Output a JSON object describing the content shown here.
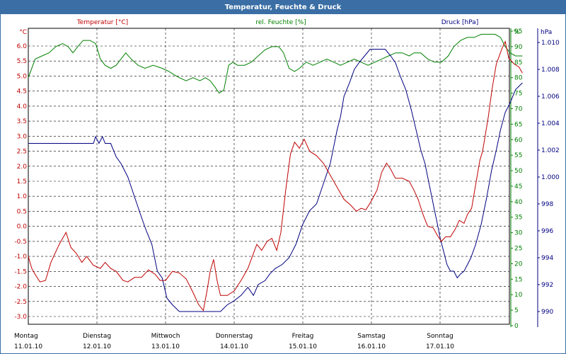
{
  "window": {
    "title": "Temperatur, Feuchte & Druck"
  },
  "colors": {
    "temperature": "#c00000",
    "humidity": "#008000",
    "pressure": "#000080",
    "titlebar": "#3a6ea5"
  },
  "chart_data": {
    "type": "line",
    "title": "Temperatur, Feuchte & Druck",
    "series_labels": {
      "temperature": "Temperatur [°C]",
      "humidity": "rel. Feuchte [%]",
      "pressure": "Druck [hPa]"
    },
    "axes": {
      "left": {
        "unit": "°C",
        "min": -3.0,
        "max": 6.0,
        "ticks": [
          "6.0",
          "5.5",
          "5.0",
          "4.5",
          "4.0",
          "3.5",
          "3.0",
          "2.5",
          "2.0",
          "1.5",
          "1.0",
          "0.5",
          "0.0",
          "-0.5",
          "-1.0",
          "-1.5",
          "-2.0",
          "-2.5",
          "-3.0"
        ]
      },
      "humidity": {
        "unit": "%",
        "min": 0,
        "max": 95,
        "ticks": [
          "95",
          "90",
          "85",
          "80",
          "75",
          "70",
          "65",
          "60",
          "55",
          "50",
          "45",
          "40",
          "35",
          "30",
          "25",
          "20",
          "15",
          "10",
          "5",
          "0"
        ]
      },
      "right": {
        "unit": "hPa",
        "min": 990,
        "max": 1010,
        "ticks": [
          "1.010",
          "1.008",
          "1.006",
          "1.004",
          "1.002",
          "1.000",
          "998",
          "996",
          "994",
          "992",
          "990"
        ]
      }
    },
    "x_days": [
      {
        "day": "Montag",
        "date": "11.01.10"
      },
      {
        "day": "Dienstag",
        "date": "12.01.10"
      },
      {
        "day": "Mittwoch",
        "date": "13.01.10"
      },
      {
        "day": "Donnerstag",
        "date": "14.01.10"
      },
      {
        "day": "Freitag",
        "date": "15.01.10"
      },
      {
        "day": "Samstag",
        "date": "16.01.10"
      },
      {
        "day": "Sonntag",
        "date": "17.01.10"
      }
    ],
    "x_range_days": [
      0,
      7
    ],
    "grid": true,
    "series": [
      {
        "name": "Temperatur [°C]",
        "points": [
          [
            0,
            -1.0
          ],
          [
            0.05,
            -1.4
          ],
          [
            0.1,
            -1.6
          ],
          [
            0.17,
            -1.85
          ],
          [
            0.25,
            -1.8
          ],
          [
            0.33,
            -1.2
          ],
          [
            0.45,
            -0.6
          ],
          [
            0.55,
            -0.2
          ],
          [
            0.62,
            -0.7
          ],
          [
            0.7,
            -0.9
          ],
          [
            0.78,
            -1.2
          ],
          [
            0.85,
            -1.0
          ],
          [
            0.95,
            -1.3
          ],
          [
            1.05,
            -1.4
          ],
          [
            1.12,
            -1.2
          ],
          [
            1.2,
            -1.4
          ],
          [
            1.28,
            -1.5
          ],
          [
            1.38,
            -1.8
          ],
          [
            1.45,
            -1.85
          ],
          [
            1.55,
            -1.7
          ],
          [
            1.65,
            -1.7
          ],
          [
            1.75,
            -1.45
          ],
          [
            1.85,
            -1.6
          ],
          [
            1.92,
            -1.8
          ],
          [
            2.0,
            -1.8
          ],
          [
            2.1,
            -1.5
          ],
          [
            2.2,
            -1.55
          ],
          [
            2.3,
            -1.75
          ],
          [
            2.4,
            -2.2
          ],
          [
            2.48,
            -2.6
          ],
          [
            2.55,
            -2.8
          ],
          [
            2.6,
            -2.2
          ],
          [
            2.65,
            -1.5
          ],
          [
            2.7,
            -1.1
          ],
          [
            2.75,
            -1.8
          ],
          [
            2.8,
            -2.3
          ],
          [
            2.9,
            -2.3
          ],
          [
            3.0,
            -2.15
          ],
          [
            3.1,
            -1.8
          ],
          [
            3.2,
            -1.4
          ],
          [
            3.28,
            -0.9
          ],
          [
            3.33,
            -0.6
          ],
          [
            3.4,
            -0.8
          ],
          [
            3.48,
            -0.5
          ],
          [
            3.55,
            -0.4
          ],
          [
            3.62,
            -0.8
          ],
          [
            3.68,
            -0.2
          ],
          [
            3.75,
            1.2
          ],
          [
            3.82,
            2.4
          ],
          [
            3.88,
            2.8
          ],
          [
            3.95,
            2.6
          ],
          [
            4.02,
            2.9
          ],
          [
            4.1,
            2.5
          ],
          [
            4.2,
            2.35
          ],
          [
            4.3,
            2.1
          ],
          [
            4.4,
            1.7
          ],
          [
            4.5,
            1.3
          ],
          [
            4.6,
            0.9
          ],
          [
            4.7,
            0.7
          ],
          [
            4.78,
            0.5
          ],
          [
            4.85,
            0.6
          ],
          [
            4.92,
            0.55
          ],
          [
            5.0,
            0.85
          ],
          [
            5.08,
            1.2
          ],
          [
            5.15,
            1.8
          ],
          [
            5.22,
            2.1
          ],
          [
            5.28,
            1.9
          ],
          [
            5.35,
            1.6
          ],
          [
            5.45,
            1.6
          ],
          [
            5.55,
            1.5
          ],
          [
            5.62,
            1.2
          ],
          [
            5.68,
            0.9
          ],
          [
            5.75,
            0.4
          ],
          [
            5.82,
            0.0
          ],
          [
            5.9,
            -0.05
          ],
          [
            5.96,
            -0.3
          ],
          [
            6.02,
            -0.5
          ],
          [
            6.08,
            -0.35
          ],
          [
            6.15,
            -0.35
          ],
          [
            6.22,
            -0.1
          ],
          [
            6.28,
            0.2
          ],
          [
            6.35,
            0.1
          ],
          [
            6.4,
            0.4
          ],
          [
            6.46,
            0.6
          ],
          [
            6.52,
            1.4
          ],
          [
            6.58,
            2.2
          ],
          [
            6.62,
            2.5
          ],
          [
            6.7,
            3.6
          ],
          [
            6.76,
            4.6
          ],
          [
            6.82,
            5.4
          ],
          [
            6.9,
            5.9
          ],
          [
            6.95,
            6.15
          ],
          [
            7.0,
            5.6
          ],
          [
            7.08,
            5.4
          ],
          [
            7.15,
            5.3
          ],
          [
            7.2,
            5.1
          ]
        ]
      },
      {
        "name": "rel. Feuchte [%]",
        "points": [
          [
            0,
            80
          ],
          [
            0.1,
            86
          ],
          [
            0.2,
            87
          ],
          [
            0.3,
            88
          ],
          [
            0.4,
            90
          ],
          [
            0.5,
            91
          ],
          [
            0.58,
            90
          ],
          [
            0.65,
            88
          ],
          [
            0.72,
            90
          ],
          [
            0.8,
            92
          ],
          [
            0.9,
            92
          ],
          [
            0.98,
            91
          ],
          [
            1.05,
            86
          ],
          [
            1.12,
            84
          ],
          [
            1.2,
            83
          ],
          [
            1.28,
            84
          ],
          [
            1.35,
            86
          ],
          [
            1.42,
            88
          ],
          [
            1.5,
            86
          ],
          [
            1.6,
            84
          ],
          [
            1.7,
            83
          ],
          [
            1.82,
            84
          ],
          [
            1.95,
            83
          ],
          [
            2.05,
            82
          ],
          [
            2.12,
            81
          ],
          [
            2.2,
            80
          ],
          [
            2.3,
            79
          ],
          [
            2.4,
            80
          ],
          [
            2.5,
            79
          ],
          [
            2.58,
            80
          ],
          [
            2.65,
            79
          ],
          [
            2.72,
            77
          ],
          [
            2.78,
            75
          ],
          [
            2.85,
            76
          ],
          [
            2.92,
            84
          ],
          [
            2.98,
            85
          ],
          [
            3.05,
            84
          ],
          [
            3.15,
            84
          ],
          [
            3.25,
            85
          ],
          [
            3.35,
            87
          ],
          [
            3.45,
            89
          ],
          [
            3.55,
            90
          ],
          [
            3.65,
            90
          ],
          [
            3.72,
            88
          ],
          [
            3.8,
            83
          ],
          [
            3.88,
            82
          ],
          [
            3.95,
            83
          ],
          [
            4.05,
            85
          ],
          [
            4.15,
            84
          ],
          [
            4.25,
            85
          ],
          [
            4.35,
            86
          ],
          [
            4.45,
            85
          ],
          [
            4.55,
            84
          ],
          [
            4.65,
            85
          ],
          [
            4.75,
            86
          ],
          [
            4.85,
            85
          ],
          [
            4.95,
            84
          ],
          [
            5.05,
            85
          ],
          [
            5.15,
            86
          ],
          [
            5.25,
            87
          ],
          [
            5.35,
            88
          ],
          [
            5.45,
            88
          ],
          [
            5.55,
            87
          ],
          [
            5.62,
            88
          ],
          [
            5.72,
            88
          ],
          [
            5.82,
            86
          ],
          [
            5.92,
            85
          ],
          [
            6.02,
            85
          ],
          [
            6.12,
            87
          ],
          [
            6.2,
            90
          ],
          [
            6.3,
            92
          ],
          [
            6.4,
            93
          ],
          [
            6.5,
            93
          ],
          [
            6.6,
            94
          ],
          [
            6.7,
            94
          ],
          [
            6.8,
            94
          ],
          [
            6.88,
            93
          ],
          [
            6.95,
            90
          ],
          [
            7.02,
            88
          ],
          [
            7.1,
            87
          ],
          [
            7.2,
            87
          ]
        ]
      },
      {
        "name": "Druck [hPa]",
        "points": [
          [
            0,
            1002.5
          ],
          [
            0.95,
            1002.5
          ],
          [
            0.98,
            1003.0
          ],
          [
            1.03,
            1002.5
          ],
          [
            1.08,
            1003.0
          ],
          [
            1.12,
            1002.5
          ],
          [
            1.2,
            1002.5
          ],
          [
            1.28,
            1001.5
          ],
          [
            1.35,
            1001.0
          ],
          [
            1.45,
            1000.0
          ],
          [
            1.55,
            998.5
          ],
          [
            1.65,
            997.0
          ],
          [
            1.72,
            996.0
          ],
          [
            1.8,
            995.0
          ],
          [
            1.88,
            993.0
          ],
          [
            1.95,
            992.5
          ],
          [
            2.02,
            991.0
          ],
          [
            2.1,
            990.5
          ],
          [
            2.2,
            990.0
          ],
          [
            2.3,
            990.0
          ],
          [
            2.42,
            990.0
          ],
          [
            2.55,
            990.0
          ],
          [
            2.68,
            990.0
          ],
          [
            2.8,
            990.0
          ],
          [
            2.9,
            990.5
          ],
          [
            3.0,
            990.8
          ],
          [
            3.1,
            991.2
          ],
          [
            3.2,
            991.8
          ],
          [
            3.28,
            991.2
          ],
          [
            3.35,
            992.0
          ],
          [
            3.45,
            992.3
          ],
          [
            3.52,
            992.8
          ],
          [
            3.6,
            993.2
          ],
          [
            3.7,
            993.5
          ],
          [
            3.8,
            994.0
          ],
          [
            3.9,
            995.0
          ],
          [
            4.0,
            996.5
          ],
          [
            4.1,
            997.5
          ],
          [
            4.2,
            998.0
          ],
          [
            4.3,
            999.5
          ],
          [
            4.4,
            1001.0
          ],
          [
            4.5,
            1003.5
          ],
          [
            4.55,
            1004.5
          ],
          [
            4.6,
            1006.0
          ],
          [
            4.68,
            1007.0
          ],
          [
            4.75,
            1008.0
          ],
          [
            4.82,
            1008.5
          ],
          [
            4.9,
            1009.0
          ],
          [
            4.98,
            1009.5
          ],
          [
            5.05,
            1009.5
          ],
          [
            5.12,
            1009.5
          ],
          [
            5.2,
            1009.5
          ],
          [
            5.28,
            1009.0
          ],
          [
            5.35,
            1008.5
          ],
          [
            5.42,
            1007.5
          ],
          [
            5.5,
            1006.5
          ],
          [
            5.58,
            1005.0
          ],
          [
            5.65,
            1003.5
          ],
          [
            5.72,
            1002.0
          ],
          [
            5.78,
            1001.0
          ],
          [
            5.82,
            1000.0
          ],
          [
            5.88,
            998.5
          ],
          [
            5.92,
            997.5
          ],
          [
            5.95,
            996.8
          ],
          [
            6.0,
            995.5
          ],
          [
            6.05,
            994.5
          ],
          [
            6.1,
            993.5
          ],
          [
            6.15,
            993.0
          ],
          [
            6.2,
            993.0
          ],
          [
            6.25,
            992.5
          ],
          [
            6.3,
            992.8
          ],
          [
            6.35,
            993.0
          ],
          [
            6.4,
            993.5
          ],
          [
            6.45,
            994.0
          ],
          [
            6.52,
            995.0
          ],
          [
            6.6,
            996.5
          ],
          [
            6.68,
            998.5
          ],
          [
            6.75,
            1000.5
          ],
          [
            6.82,
            1002.0
          ],
          [
            6.88,
            1003.5
          ],
          [
            6.95,
            1004.8
          ],
          [
            7.02,
            1005.5
          ],
          [
            7.1,
            1006.5
          ],
          [
            7.2,
            1007.0
          ]
        ]
      }
    ]
  }
}
